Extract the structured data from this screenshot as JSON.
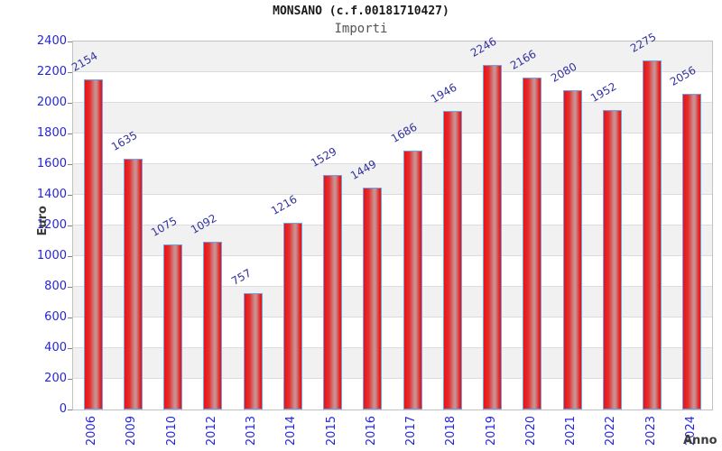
{
  "header": {
    "title": "MONSANO (c.f.00181710427)",
    "subtitle": "Importi"
  },
  "chart_data": {
    "type": "bar",
    "title": "MONSANO (c.f.00181710427)",
    "subtitle": "Importi",
    "categories": [
      "2006",
      "2009",
      "2010",
      "2012",
      "2013",
      "2014",
      "2015",
      "2016",
      "2017",
      "2018",
      "2019",
      "2020",
      "2021",
      "2022",
      "2023",
      "2024"
    ],
    "values": [
      2154,
      1635,
      1075,
      1092,
      757,
      1216,
      1529,
      1449,
      1686,
      1946,
      2246,
      2166,
      2080,
      1952,
      2275,
      2056
    ],
    "xlabel": "Anno",
    "ylabel": "Euro",
    "ylim": [
      0,
      2400
    ],
    "yticks": [
      0,
      200,
      400,
      600,
      800,
      1000,
      1200,
      1400,
      1600,
      1800,
      2000,
      2200,
      2400
    ],
    "grid": "alternating-horizontal-bands",
    "legend": "none",
    "colors": {
      "bar_fill": "#ee1111",
      "bar_highlight": "#c99191",
      "bar_border": "#69a5e8",
      "tick_label": "#2626d8",
      "value_label": "#32329e",
      "band_gray": "#f1f1f1",
      "band_white": "#ffffff",
      "axis_title": "#3c3c3c"
    }
  }
}
